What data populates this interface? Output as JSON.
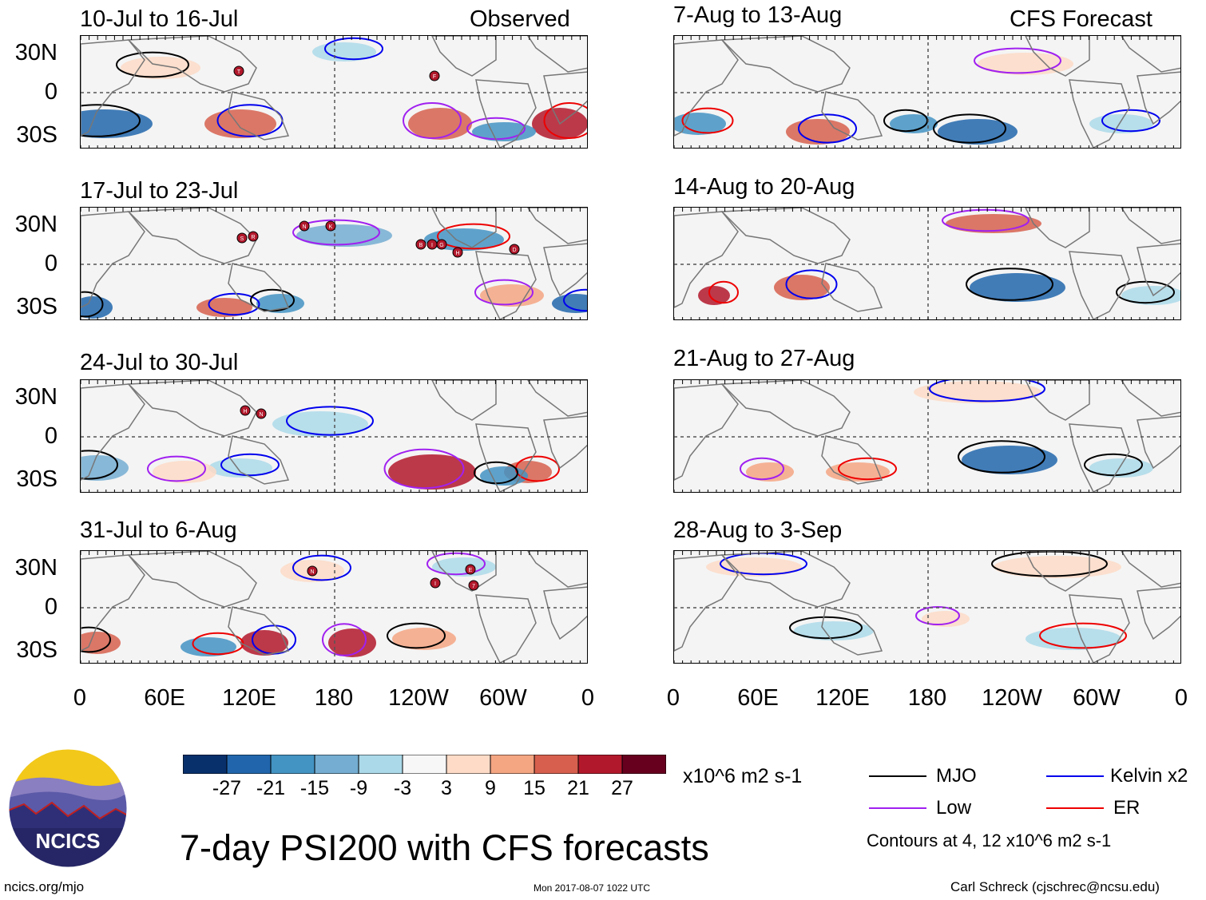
{
  "panels_left": [
    {
      "period": "10-Jul to 16-Jul",
      "tag": "Observed"
    },
    {
      "period": "17-Jul to 23-Jul",
      "tag": ""
    },
    {
      "period": "24-Jul to 30-Jul",
      "tag": ""
    },
    {
      "period": "31-Jul to 6-Aug",
      "tag": ""
    }
  ],
  "panels_right": [
    {
      "period": "7-Aug to 13-Aug",
      "tag": "CFS Forecast"
    },
    {
      "period": "14-Aug to 20-Aug",
      "tag": ""
    },
    {
      "period": "21-Aug to 27-Aug",
      "tag": ""
    },
    {
      "period": "28-Aug to 3-Sep",
      "tag": ""
    }
  ],
  "lat_labels": [
    "30N",
    "0",
    "30S"
  ],
  "lon_labels": [
    "0",
    "60E",
    "120E",
    "180",
    "120W",
    "60W",
    "0"
  ],
  "colorbar": {
    "colors": [
      "#08306b",
      "#2166ac",
      "#4393c3",
      "#74add1",
      "#abd9e9",
      "#f7f7f7",
      "#fddbc7",
      "#f4a582",
      "#d6604d",
      "#b2182b",
      "#67001f"
    ],
    "labels": [
      "-27",
      "-21",
      "-15",
      "-9",
      "-3",
      "3",
      "9",
      "15",
      "21",
      "27"
    ],
    "units": "x10^6 m2 s-1"
  },
  "legend": {
    "items": [
      {
        "label": "MJO",
        "color": "#000000"
      },
      {
        "label": "Kelvin x2",
        "color": "#0000ee"
      },
      {
        "label": "Low",
        "color": "#a020f0"
      },
      {
        "label": "ER",
        "color": "#ee0000"
      }
    ],
    "note": "Contours at 4, 12 x10^6 m2 s-1"
  },
  "storm_markers": [
    {
      "panel": 0,
      "letters": [
        "T",
        "F"
      ]
    },
    {
      "panel": 1,
      "letters": [
        "N",
        "K",
        "S",
        "R",
        "B",
        "I",
        "G",
        "H",
        "D"
      ]
    },
    {
      "panel": 2,
      "letters": [
        "H",
        "N"
      ]
    },
    {
      "panel": 3,
      "letters": [
        "N",
        "E",
        "I",
        "7"
      ]
    }
  ],
  "logo_text": "NCICS",
  "main_title": "7-day PSI200 with CFS forecasts",
  "footer": {
    "url": "ncics.org/mjo",
    "timestamp": "Mon 2017-08-07 1022 UTC",
    "author": "Carl Schreck (cjschrec@ncsu.edu)"
  }
}
